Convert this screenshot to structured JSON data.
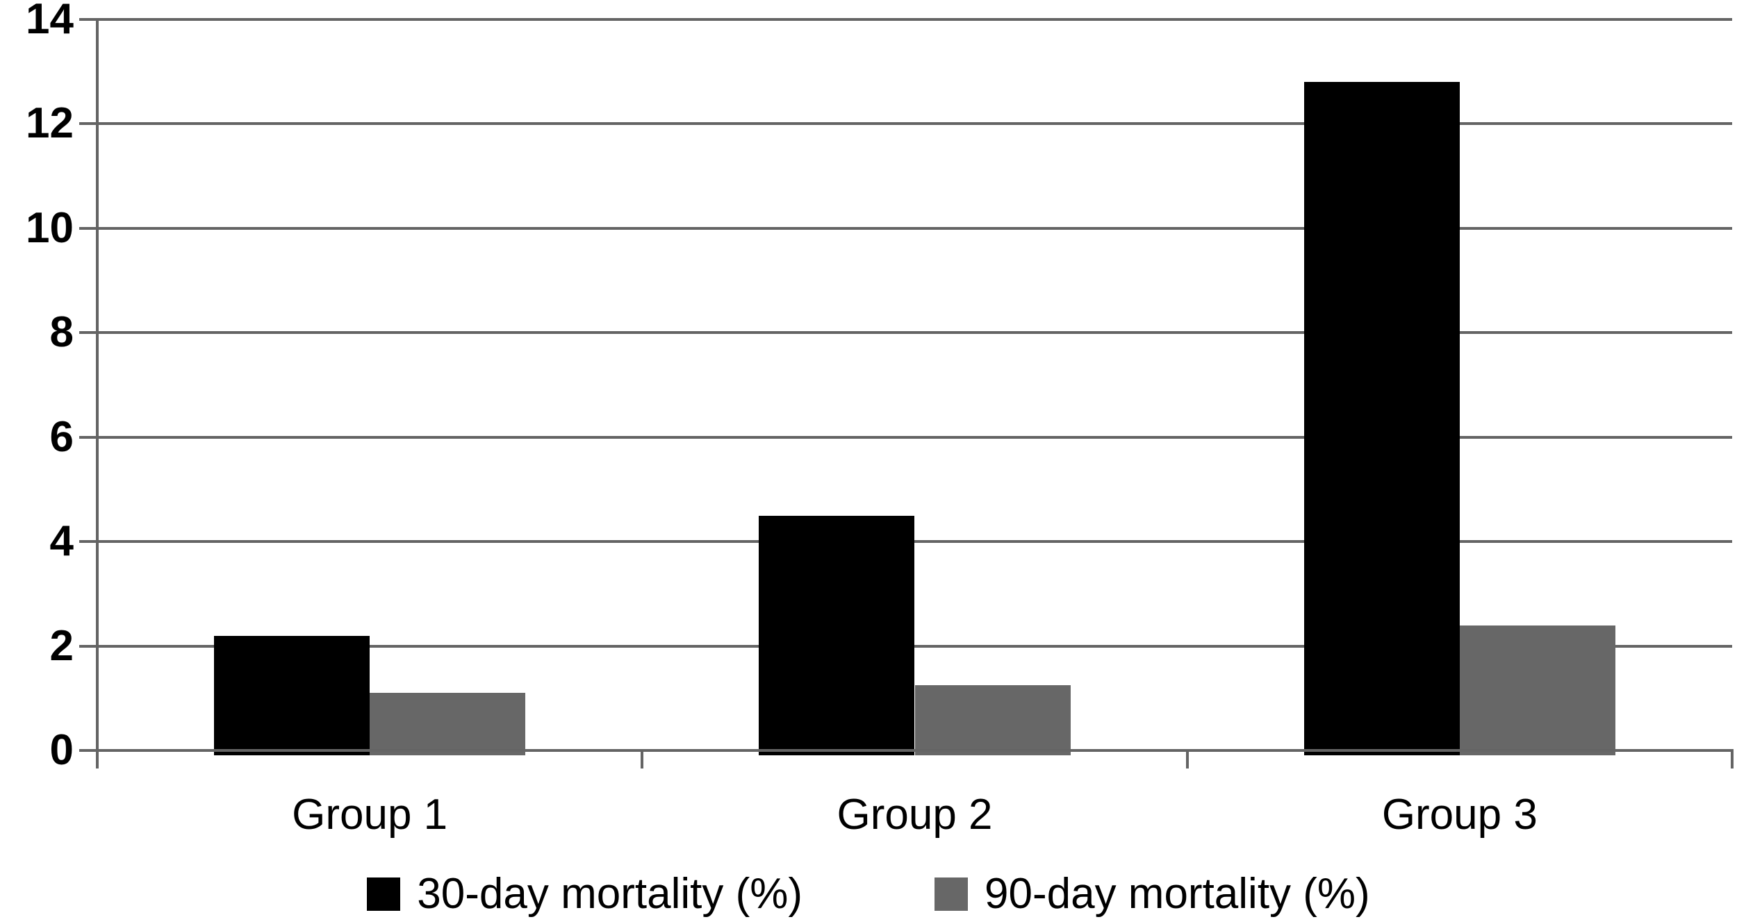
{
  "chart_data": {
    "type": "bar",
    "title": "",
    "xlabel": "",
    "ylabel": "",
    "categories": [
      "Group 1",
      "Group 2",
      "Group 3"
    ],
    "series": [
      {
        "name": "30-day mortality (%)",
        "color": "#000000",
        "values": [
          2.2,
          4.5,
          12.8
        ]
      },
      {
        "name": "90-day mortality (%)",
        "color": "#676767",
        "values": [
          1.1,
          1.25,
          2.4
        ]
      }
    ],
    "ylim": [
      0,
      14
    ],
    "yticks": [
      0,
      2,
      4,
      6,
      8,
      10,
      12,
      14
    ],
    "grid": true,
    "legend_position": "bottom",
    "axis_color": "#646464",
    "background_color": "#ffffff"
  }
}
